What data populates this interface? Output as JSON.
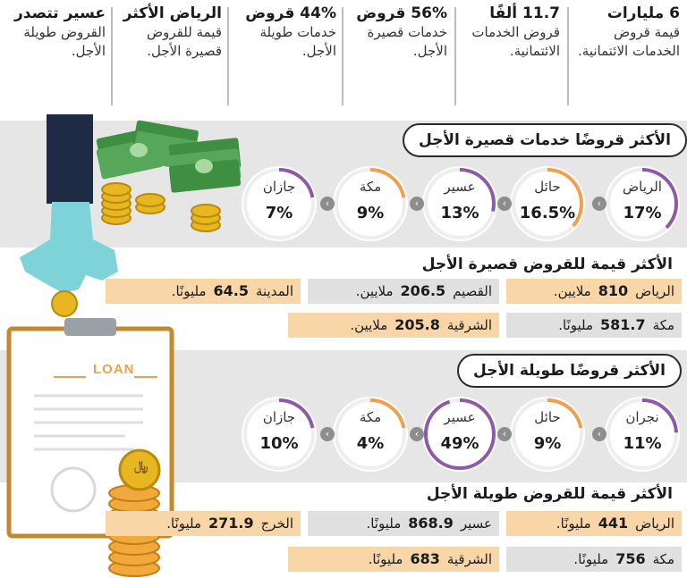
{
  "top_stats": [
    {
      "head": "6 مليارات",
      "desc": "قيمة قروض الخدمات الائتمانية."
    },
    {
      "head": "11.7 ألفًا",
      "desc": "قروض الخدمات الائتمانية."
    },
    {
      "head": "56% قروض",
      "desc": "خدمات قصيرة الأجل."
    },
    {
      "head": "44% قروض",
      "desc": "خدمات طويلة الأجل."
    },
    {
      "head": "الرياض الأكثر",
      "desc": "قيمة للقروض قصيرة الأجل."
    },
    {
      "head": "عسير تتصدر",
      "desc": "القروض طويلة الأجل."
    }
  ],
  "short_count": {
    "title": "الأكثر قروضًا خدمات قصيرة الأجل",
    "items": [
      {
        "name": "الرياض",
        "pct": "17%",
        "fraction": 0.17
      },
      {
        "name": "حائل",
        "pct": "16.5%",
        "fraction": 0.165
      },
      {
        "name": "عسير",
        "pct": "13%",
        "fraction": 0.13
      },
      {
        "name": "مكة",
        "pct": "9%",
        "fraction": 0.09
      },
      {
        "name": "جازان",
        "pct": "7%",
        "fraction": 0.07
      }
    ]
  },
  "short_value": {
    "title": "الأكثر قيمة للقروض قصيرة الأجل",
    "rows": [
      [
        {
          "city": "الرياض",
          "value": "810",
          "unit": "ملايين.",
          "style": "orange"
        },
        {
          "city": "القصيم",
          "value": "206.5",
          "unit": "ملايين.",
          "style": "gray"
        },
        {
          "city": "المدينة",
          "value": "64.5",
          "unit": "مليونًا.",
          "style": "orange"
        }
      ],
      [
        {
          "city": "مكة",
          "value": "581.7",
          "unit": "مليونًا.",
          "style": "gray"
        },
        {
          "city": "الشرقية",
          "value": "205.8",
          "unit": "ملايين.",
          "style": "orange"
        }
      ]
    ]
  },
  "long_count": {
    "title": "الأكثر قروضًا طويلة الأجل",
    "items": [
      {
        "name": "نجران",
        "pct": "11%",
        "fraction": 0.11
      },
      {
        "name": "حائل",
        "pct": "9%",
        "fraction": 0.09
      },
      {
        "name": "عسير",
        "pct": "49%",
        "fraction": 0.49
      },
      {
        "name": "مكة",
        "pct": "4%",
        "fraction": 0.04
      },
      {
        "name": "جازان",
        "pct": "10%",
        "fraction": 0.1
      }
    ]
  },
  "long_value": {
    "title": "الأكثر قيمة للقروض طويلة الأجل",
    "rows": [
      [
        {
          "city": "الرياض",
          "value": "441",
          "unit": "مليونًا.",
          "style": "orange"
        },
        {
          "city": "عسير",
          "value": "868.9",
          "unit": "مليونًا.",
          "style": "gray"
        },
        {
          "city": "الخرج",
          "value": "271.9",
          "unit": "مليونًا.",
          "style": "orange"
        }
      ],
      [
        {
          "city": "مكة",
          "value": "756",
          "unit": "مليونًا.",
          "style": "gray"
        },
        {
          "city": "الشرقية",
          "value": "683",
          "unit": "مليونًا.",
          "style": "orange"
        }
      ]
    ]
  },
  "illustration": {
    "clipboard_word": "LOAN",
    "coin_symbol": "﷼"
  },
  "colors": {
    "orange": "#f8d6a8",
    "gray": "#e0e0e0",
    "ring_orange": "#f0a04b",
    "ring_purple": "#8e5aa8",
    "money_green": "#3f8f43",
    "coin_gold": "#e8b620",
    "hand_teal": "#7ed3d8",
    "sleeve_navy": "#1f2a44"
  }
}
